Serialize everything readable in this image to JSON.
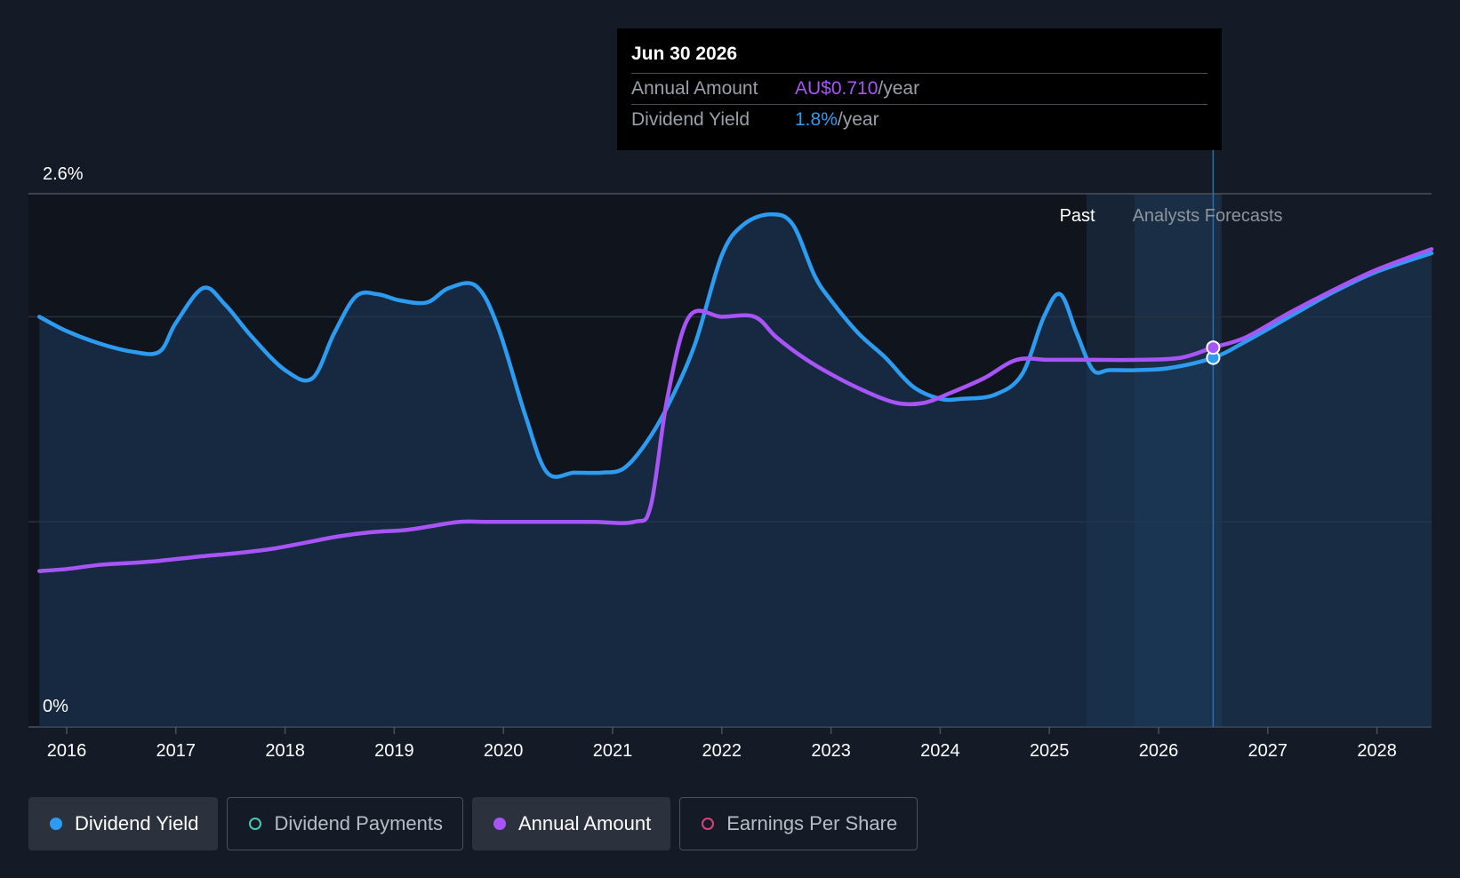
{
  "tooltip": {
    "date": "Jun 30 2026",
    "rows": [
      {
        "label": "Annual Amount",
        "value": "AU$0.710",
        "unit": "/year",
        "color": "#a855f7"
      },
      {
        "label": "Dividend Yield",
        "value": "1.8%",
        "unit": "/year",
        "color": "#2d9cf0"
      }
    ]
  },
  "legend": [
    {
      "label": "Dividend Yield",
      "color": "#2d9cf0",
      "active": true,
      "filled": true
    },
    {
      "label": "Dividend Payments",
      "color": "#4ec9b0",
      "active": false,
      "filled": false
    },
    {
      "label": "Annual Amount",
      "color": "#a855f7",
      "active": true,
      "filled": true
    },
    {
      "label": "Earnings Per Share",
      "color": "#d9437a",
      "active": false,
      "filled": false
    }
  ],
  "chart_data": {
    "type": "line",
    "y_tick_labels": {
      "top": "2.6%",
      "bottom": "0%"
    },
    "ylim": [
      0,
      2.6
    ],
    "xlim": [
      2015.65,
      2028.5
    ],
    "x_ticks": [
      2016,
      2017,
      2018,
      2019,
      2020,
      2021,
      2022,
      2023,
      2024,
      2025,
      2026,
      2027,
      2028
    ],
    "region_labels": {
      "past": "Past",
      "forecast": "Analysts Forecasts"
    },
    "past_end": 2025.5,
    "tooltip_x": 2026.5,
    "grid": true,
    "series": [
      {
        "name": "Dividend Yield",
        "color": "#2d9cf0",
        "area": true,
        "x": [
          2015.75,
          2016.0,
          2016.3,
          2016.6,
          2016.85,
          2017.0,
          2017.25,
          2017.45,
          2017.7,
          2018.0,
          2018.25,
          2018.45,
          2018.65,
          2018.85,
          2019.05,
          2019.3,
          2019.5,
          2019.75,
          2019.95,
          2020.2,
          2020.4,
          2020.65,
          2020.9,
          2021.1,
          2021.3,
          2021.5,
          2021.75,
          2022.0,
          2022.2,
          2022.45,
          2022.65,
          2022.85,
          2023.0,
          2023.25,
          2023.5,
          2023.75,
          2024.0,
          2024.2,
          2024.5,
          2024.75,
          2024.95,
          2025.1,
          2025.25,
          2025.4,
          2025.55,
          2025.8,
          2026.1,
          2026.5,
          2026.8,
          2027.2,
          2027.6,
          2028.0,
          2028.5
        ],
        "y": [
          2.0,
          1.93,
          1.87,
          1.83,
          1.83,
          1.97,
          2.14,
          2.06,
          1.9,
          1.74,
          1.7,
          1.92,
          2.1,
          2.11,
          2.08,
          2.07,
          2.14,
          2.15,
          1.95,
          1.52,
          1.24,
          1.24,
          1.24,
          1.26,
          1.38,
          1.56,
          1.86,
          2.3,
          2.45,
          2.5,
          2.45,
          2.2,
          2.08,
          1.92,
          1.8,
          1.66,
          1.6,
          1.6,
          1.62,
          1.72,
          2.0,
          2.11,
          1.92,
          1.74,
          1.74,
          1.74,
          1.75,
          1.8,
          1.88,
          2.0,
          2.12,
          2.22,
          2.31
        ]
      },
      {
        "name": "Annual Amount",
        "color": "#a855f7",
        "area": false,
        "x": [
          2015.75,
          2016.0,
          2016.3,
          2016.6,
          2016.85,
          2017.2,
          2017.6,
          2017.9,
          2018.2,
          2018.5,
          2018.8,
          2019.1,
          2019.35,
          2019.6,
          2019.85,
          2020.3,
          2020.8,
          2021.2,
          2021.35,
          2021.5,
          2021.7,
          2022.0,
          2022.3,
          2022.5,
          2022.75,
          2023.0,
          2023.3,
          2023.6,
          2023.85,
          2024.1,
          2024.4,
          2024.7,
          2025.0,
          2025.4,
          2025.8,
          2026.2,
          2026.5,
          2026.8,
          2027.2,
          2027.6,
          2028.0,
          2028.5
        ],
        "y": [
          0.76,
          0.77,
          0.79,
          0.8,
          0.81,
          0.83,
          0.85,
          0.87,
          0.9,
          0.93,
          0.95,
          0.96,
          0.98,
          1.0,
          1.0,
          1.0,
          1.0,
          1.0,
          1.08,
          1.6,
          2.0,
          2.0,
          2.0,
          1.9,
          1.8,
          1.72,
          1.64,
          1.58,
          1.58,
          1.63,
          1.7,
          1.79,
          1.79,
          1.79,
          1.79,
          1.8,
          1.85,
          1.9,
          2.02,
          2.13,
          2.23,
          2.33
        ]
      }
    ]
  }
}
